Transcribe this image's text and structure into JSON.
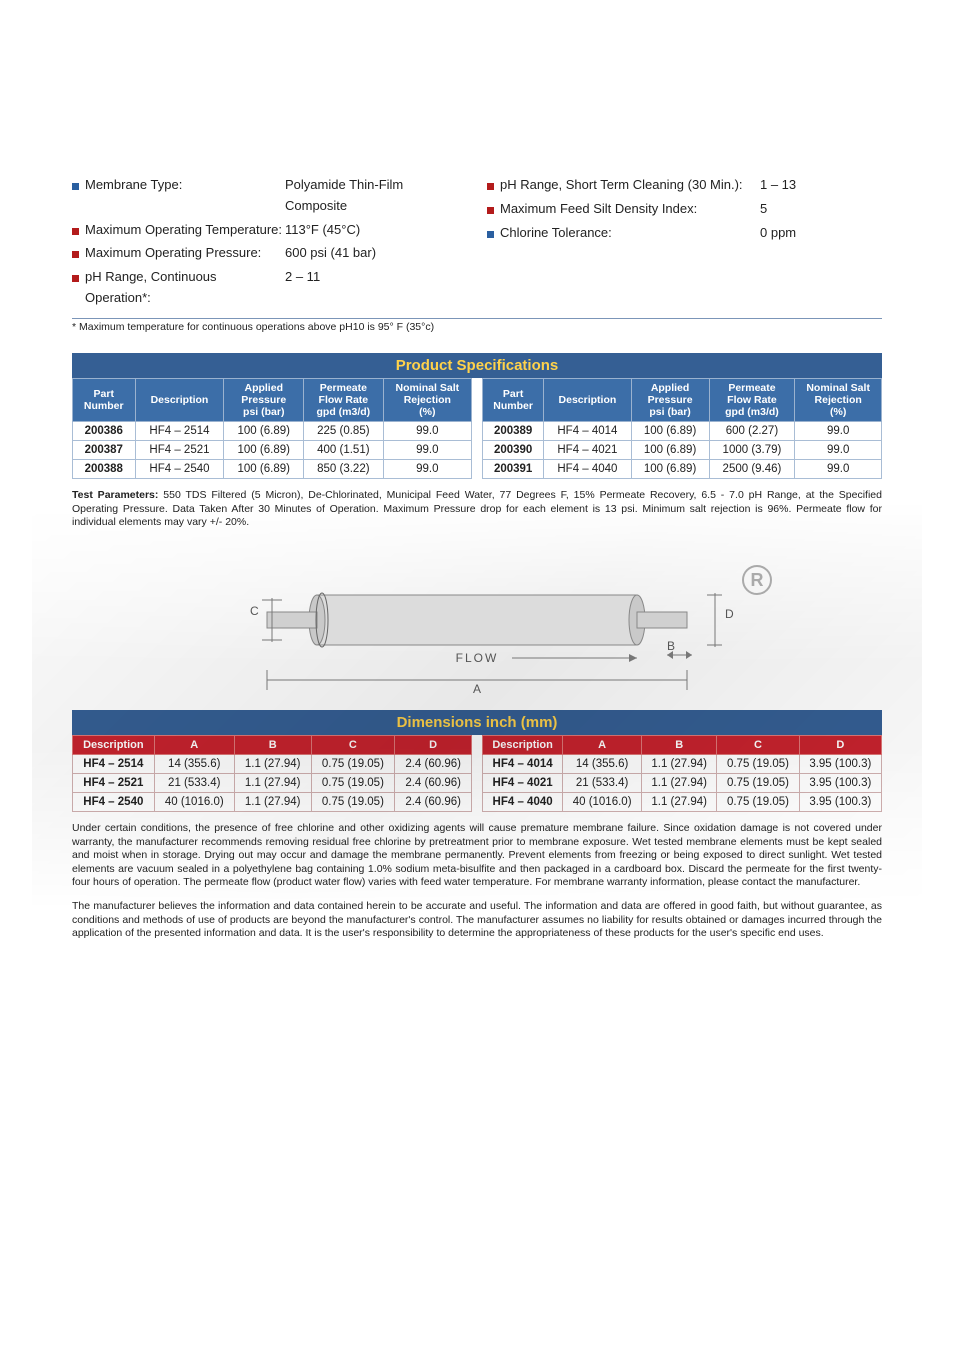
{
  "info_left": [
    {
      "bullet": "blue",
      "label": "Membrane Type:",
      "value": "Polyamide Thin-Film Composite"
    },
    {
      "bullet": "red",
      "label": "Maximum Operating Temperature:",
      "value": "113°F (45°C)"
    },
    {
      "bullet": "red",
      "label": "Maximum Operating Pressure:",
      "value": "600 psi (41 bar)"
    },
    {
      "bullet": "red",
      "label": "pH Range, Continuous Operation*:",
      "value": "2 – 11"
    }
  ],
  "info_right": [
    {
      "bullet": "red",
      "label": "pH Range, Short Term Cleaning (30 Min.):",
      "value": "1 – 13"
    },
    {
      "bullet": "red",
      "label": "Maximum Feed Silt Density Index:",
      "value": "5"
    },
    {
      "bullet": "blue",
      "label": "Chlorine Tolerance:",
      "value": "0 ppm"
    }
  ],
  "footnote": "* Maximum temperature for continuous operations above pH10 is 95° F (35°c)",
  "spec_title": "Product Specifications",
  "spec_columns": [
    "Part\nNumber",
    "Description",
    "Applied\nPressure\npsi (bar)",
    "Permeate\nFlow Rate\ngpd (m3/d)",
    "Nominal Salt\nRejection\n(%)"
  ],
  "spec_left_rows": [
    [
      "200386",
      "HF4 – 2514",
      "100 (6.89)",
      "225 (0.85)",
      "99.0"
    ],
    [
      "200387",
      "HF4 – 2521",
      "100 (6.89)",
      "400 (1.51)",
      "99.0"
    ],
    [
      "200388",
      "HF4 – 2540",
      "100 (6.89)",
      "850 (3.22)",
      "99.0"
    ]
  ],
  "spec_right_rows": [
    [
      "200389",
      "HF4 – 4014",
      "100 (6.89)",
      "600 (2.27)",
      "99.0"
    ],
    [
      "200390",
      "HF4 – 4021",
      "100 (6.89)",
      "1000 (3.79)",
      "99.0"
    ],
    [
      "200391",
      "HF4 – 4040",
      "100 (6.89)",
      "2500 (9.46)",
      "99.0"
    ]
  ],
  "test_params_label": "Test Parameters:",
  "test_params_text": " 550 TDS Filtered (5 Micron), De-Chlorinated, Municipal Feed Water, 77 Degrees F, 15% Permeate Recovery, 6.5 - 7.0 pH Range, at the Specified Operating Pressure. Data Taken After 30 Minutes of Operation. Maximum Pressure drop for each element is 13 psi. Minimum salt rejection is 96%. Permeate flow for individual elements may vary +/- 20%.",
  "diagram": {
    "labels": {
      "A": "A",
      "B": "B",
      "C": "C",
      "D": "D",
      "flow": "FLOW"
    },
    "colors": {
      "stroke": "#777",
      "fill1": "#d9d9d9",
      "fill2": "#c7c7c7",
      "text": "#555"
    }
  },
  "dim_title": "Dimensions inch (mm)",
  "dim_columns": [
    "Description",
    "A",
    "B",
    "C",
    "D"
  ],
  "dim_left_rows": [
    [
      "HF4 – 2514",
      "14 (355.6)",
      "1.1 (27.94)",
      "0.75 (19.05)",
      "2.4 (60.96)"
    ],
    [
      "HF4 – 2521",
      "21 (533.4)",
      "1.1 (27.94)",
      "0.75 (19.05)",
      "2.4 (60.96)"
    ],
    [
      "HF4 – 2540",
      "40 (1016.0)",
      "1.1 (27.94)",
      "0.75 (19.05)",
      "2.4 (60.96)"
    ]
  ],
  "dim_right_rows": [
    [
      "HF4 – 4014",
      "14 (355.6)",
      "1.1 (27.94)",
      "0.75 (19.05)",
      "3.95 (100.3)"
    ],
    [
      "HF4 – 4021",
      "21 (533.4)",
      "1.1 (27.94)",
      "0.75 (19.05)",
      "3.95 (100.3)"
    ],
    [
      "HF4 – 4040",
      "40 (1016.0)",
      "1.1 (27.94)",
      "0.75 (19.05)",
      "3.95 (100.3)"
    ]
  ],
  "para1": "Under certain conditions, the presence of free chlorine and other oxidizing agents will cause premature membrane failure. Since oxidation damage is not covered under warranty, the manufacturer recommends removing residual free chlorine by pretreatment prior to membrane exposure. Wet tested membrane elements must be kept sealed and moist when in storage. Drying out may occur and damage the membrane permanently. Prevent elements from freezing or being exposed to direct sunlight. Wet tested elements are vacuum sealed in a polyethylene bag containing 1.0% sodium meta-bisulfite and then packaged in a cardboard box. Discard the permeate for the first twenty-four hours of operation. The permeate flow (product water flow) varies with feed water temperature. For membrane warranty information, please contact the manufacturer.",
  "para2": "The manufacturer believes the information and data contained herein to be accurate and useful. The information and data are offered in good faith, but without guarantee, as conditions and methods of use of products are beyond the manufacturer's control. The manufacturer assumes no liability for results obtained or damages incurred through the application of the presented information and data. It is the user's responsibility to determine the appropriateness of these products for the user's specific end uses."
}
